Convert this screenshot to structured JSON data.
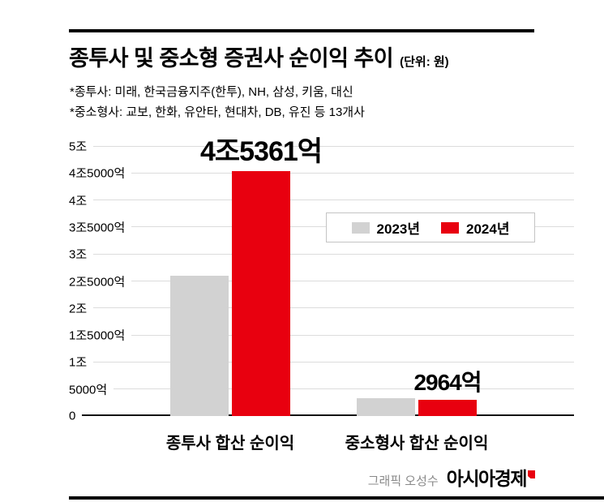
{
  "header": {
    "title": "종투사 및 중소형 증권사 순이익 추이",
    "unit": "(단위: 원)",
    "footnotes": [
      "*종투사: 미래, 한국금융지주(한투), NH, 삼성, 키움, 대신",
      "*중소형사: 교보, 한화, 유안타, 현대차, DB, 유진 등 13개사"
    ]
  },
  "chart_data": {
    "type": "bar",
    "title": "종투사 및 중소형 증권사 순이익 추이",
    "unit": "원",
    "categories": [
      "종투사 합산 순이익",
      "중소형사 합산 순이익"
    ],
    "series": [
      {
        "name": "2023년",
        "color": "#d2d2d2",
        "values_100m_won": [
          26000,
          3300
        ]
      },
      {
        "name": "2024년",
        "color": "#e8000f",
        "values_100m_won": [
          45361,
          2964
        ],
        "bar_labels": [
          "4조5361억",
          "2964억"
        ]
      }
    ],
    "axis": {
      "max_100m_won": 50000,
      "ticks": [
        {
          "label": "0",
          "value": 0
        },
        {
          "label": "5000억",
          "value": 5000
        },
        {
          "label": "1조",
          "value": 10000
        },
        {
          "label": "1조5000억",
          "value": 15000
        },
        {
          "label": "2조",
          "value": 20000
        },
        {
          "label": "2조5000억",
          "value": 25000
        },
        {
          "label": "3조",
          "value": 30000
        },
        {
          "label": "3조5000억",
          "value": 35000
        },
        {
          "label": "4조",
          "value": 40000
        },
        {
          "label": "4조5000억",
          "value": 45000
        },
        {
          "label": "5조",
          "value": 50000
        }
      ]
    },
    "legend": {
      "position": "middle-right",
      "entries": [
        "2023년",
        "2024년"
      ]
    },
    "grid": true
  },
  "footer": {
    "credit": "그래픽 오성수",
    "brand": "아시아경제"
  }
}
